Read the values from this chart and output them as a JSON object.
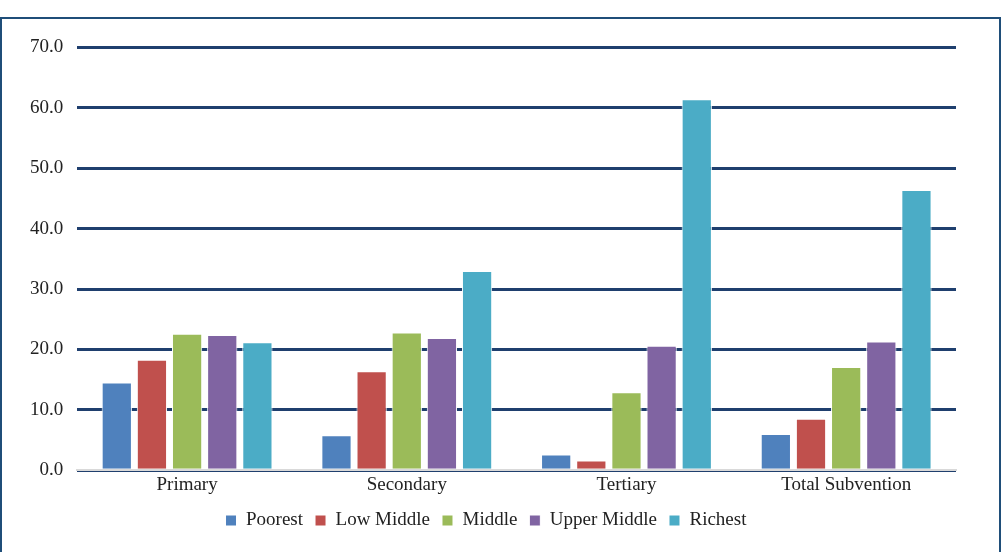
{
  "chart_data": {
    "type": "bar",
    "categories": [
      "Primary",
      "Secondary",
      "Tertiary",
      "Total Subvention"
    ],
    "series": [
      {
        "name": "Poorest",
        "color": "#4f81bd",
        "values": [
          14.5,
          5.8,
          2.6,
          6.0
        ]
      },
      {
        "name": "Low Middle",
        "color": "#c0504d",
        "values": [
          18.3,
          16.4,
          1.6,
          8.5
        ]
      },
      {
        "name": "Middle",
        "color": "#9bbb59",
        "values": [
          22.6,
          22.8,
          12.9,
          17.1
        ]
      },
      {
        "name": "Upper Middle",
        "color": "#8064a2",
        "values": [
          22.4,
          21.9,
          20.6,
          21.3
        ]
      },
      {
        "name": "Richest",
        "color": "#4bacc6",
        "values": [
          21.2,
          33.0,
          61.4,
          46.4
        ]
      }
    ],
    "ylim": [
      0,
      70
    ],
    "yticks": [
      {
        "value": 0,
        "label": "0.0"
      },
      {
        "value": 10,
        "label": "10.0"
      },
      {
        "value": 20,
        "label": "20.0"
      },
      {
        "value": 30,
        "label": "30.0"
      },
      {
        "value": 40,
        "label": "40.0"
      },
      {
        "value": 50,
        "label": "50.0"
      },
      {
        "value": 60,
        "label": "60.0"
      },
      {
        "value": 70,
        "label": "70.0"
      }
    ],
    "grid": "y",
    "legend": "bottom"
  }
}
